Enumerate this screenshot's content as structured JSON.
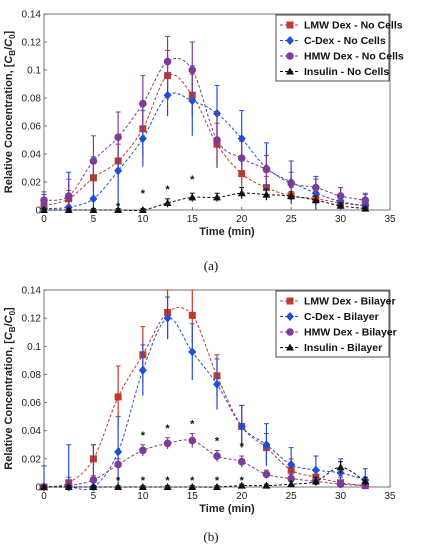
{
  "chart_data": [
    {
      "type": "line",
      "caption": "(a)",
      "xlabel": "Time (min)",
      "ylabel": "Relative Concentration, [C_B/C_0]",
      "ylabel_main": "Relative Concentration, [",
      "ylabel_c": "C",
      "ylabel_b": "B",
      "ylabel_slash": "/",
      "ylabel_c2": "C",
      "ylabel_0": "0",
      "ylabel_end": "]",
      "xlim": [
        0,
        35
      ],
      "ylim": [
        0,
        0.14
      ],
      "xticks": [
        "0",
        "5",
        "10",
        "15",
        "20",
        "25",
        "30",
        "35"
      ],
      "yticks": [
        "0",
        "0.02",
        "0.04",
        "0.06",
        "0.08",
        "0.1",
        "0.12",
        "0.14"
      ],
      "legend_position": "top-right",
      "x": [
        0,
        2.5,
        5,
        7.5,
        10,
        12.5,
        15,
        17.5,
        20,
        22.5,
        25,
        27.5,
        30,
        32.5
      ],
      "series": [
        {
          "name": "LMW Dex - No Cells",
          "color": "#c0392b",
          "marker": "square",
          "values": [
            0.003,
            0.008,
            0.023,
            0.035,
            0.058,
            0.096,
            0.082,
            0.047,
            0.026,
            0.016,
            0.01,
            0.008,
            0.005,
            0.003
          ],
          "errors": [
            0.004,
            0.006,
            0.01,
            0.012,
            0.02,
            0.018,
            0.015,
            0.015,
            0.012,
            0.008,
            0.006,
            0.005,
            0.004,
            0.003
          ]
        },
        {
          "name": "C-Dex - No Cells",
          "color": "#1f4fd6",
          "marker": "diamond",
          "values": [
            0.001,
            0.002,
            0.008,
            0.028,
            0.051,
            0.082,
            0.078,
            0.069,
            0.051,
            0.03,
            0.02,
            0.012,
            0.006,
            0.003
          ],
          "errors": [
            0.01,
            0.025,
            0.03,
            0.025,
            0.02,
            0.015,
            0.025,
            0.02,
            0.02,
            0.018,
            0.015,
            0.012,
            0.01,
            0.008
          ]
        },
        {
          "name": "HMW Dex - No Cells",
          "color": "#7d3c98",
          "marker": "circle",
          "values": [
            0.007,
            0.01,
            0.035,
            0.052,
            0.076,
            0.106,
            0.1,
            0.05,
            0.037,
            0.029,
            0.019,
            0.016,
            0.01,
            0.007
          ],
          "errors": [
            0.006,
            0.012,
            0.018,
            0.018,
            0.02,
            0.018,
            0.02,
            0.02,
            0.012,
            0.01,
            0.008,
            0.006,
            0.006,
            0.005
          ]
        },
        {
          "name": "Insulin - No Cells",
          "color": "#111111",
          "marker": "triangle",
          "values": [
            0.0,
            0.0,
            0.0,
            0.0,
            0.0,
            0.005,
            0.009,
            0.009,
            0.012,
            0.011,
            0.01,
            0.007,
            0.003,
            0.001
          ],
          "errors": [
            0.001,
            0.001,
            0.001,
            0.001,
            0.001,
            0.003,
            0.003,
            0.003,
            0.004,
            0.004,
            0.003,
            0.003,
            0.002,
            0.001
          ]
        }
      ],
      "annotations": [
        {
          "text": "*",
          "x": 7.5,
          "y": 0.003
        },
        {
          "text": "*",
          "x": 10,
          "y": 0.012
        },
        {
          "text": "*",
          "x": 12.5,
          "y": 0.015
        },
        {
          "text": "*",
          "x": 15,
          "y": 0.022
        }
      ]
    },
    {
      "type": "line",
      "caption": "(b)",
      "xlabel": "Time (min)",
      "ylabel": "Relative Concentration, [C_B/C_0]",
      "ylabel_main": "Relative Concentration, [",
      "ylabel_c": "C",
      "ylabel_b": "B",
      "ylabel_slash": "/",
      "ylabel_c2": "C",
      "ylabel_0": "0",
      "ylabel_end": "]",
      "xlim": [
        0,
        35
      ],
      "ylim": [
        0,
        0.14
      ],
      "xticks": [
        "0",
        "5",
        "10",
        "15",
        "20",
        "25",
        "30",
        "35"
      ],
      "yticks": [
        "0",
        "0.02",
        "0.04",
        "0.06",
        "0.08",
        "0.1",
        "0.12",
        "0.14"
      ],
      "legend_position": "top-right",
      "x": [
        0,
        2.5,
        5,
        7.5,
        10,
        12.5,
        15,
        17.5,
        20,
        22.5,
        25,
        27.5,
        30,
        32.5
      ],
      "series": [
        {
          "name": "LMW Dex - Bilayer",
          "color": "#c0392b",
          "marker": "square",
          "values": [
            0.0,
            0.003,
            0.02,
            0.064,
            0.094,
            0.124,
            0.122,
            0.079,
            0.043,
            0.028,
            0.012,
            0.007,
            0.003,
            0.001
          ],
          "errors": [
            0.002,
            0.004,
            0.01,
            0.022,
            0.02,
            0.018,
            0.02,
            0.015,
            0.015,
            0.01,
            0.008,
            0.005,
            0.004,
            0.002
          ]
        },
        {
          "name": "C-Dex - Bilayer",
          "color": "#1f4fd6",
          "marker": "diamond",
          "values": [
            0.0,
            0.0,
            0.0,
            0.025,
            0.083,
            0.12,
            0.096,
            0.073,
            0.043,
            0.03,
            0.016,
            0.012,
            0.01,
            0.005
          ],
          "errors": [
            0.015,
            0.03,
            0.03,
            0.025,
            0.018,
            0.015,
            0.02,
            0.018,
            0.015,
            0.015,
            0.012,
            0.01,
            0.01,
            0.008
          ]
        },
        {
          "name": "HMW Dex - Bilayer",
          "color": "#7d3c98",
          "marker": "circle",
          "values": [
            0.0,
            0.001,
            0.005,
            0.016,
            0.026,
            0.031,
            0.033,
            0.022,
            0.018,
            0.009,
            0.006,
            0.004,
            0.002,
            0.001
          ],
          "errors": [
            0.002,
            0.002,
            0.003,
            0.004,
            0.004,
            0.004,
            0.005,
            0.004,
            0.004,
            0.003,
            0.003,
            0.002,
            0.002,
            0.001
          ]
        },
        {
          "name": "Insulin - Bilayer",
          "color": "#111111",
          "marker": "triangle",
          "values": [
            0.0,
            0.0,
            0.0,
            0.0,
            0.0,
            0.0,
            0.0,
            0.0,
            0.001,
            0.001,
            0.002,
            0.004,
            0.014,
            0.004
          ],
          "errors": [
            0.001,
            0.001,
            0.001,
            0.001,
            0.001,
            0.001,
            0.001,
            0.001,
            0.001,
            0.001,
            0.002,
            0.003,
            0.004,
            0.003
          ]
        }
      ],
      "annotations": [
        {
          "text": "*",
          "x": 7.5,
          "y": 0.005
        },
        {
          "text": "*",
          "x": 10,
          "y": 0.037
        },
        {
          "text": "*",
          "x": 12.5,
          "y": 0.042
        },
        {
          "text": "*",
          "x": 15,
          "y": 0.045
        },
        {
          "text": "*",
          "x": 17.5,
          "y": 0.033
        },
        {
          "text": "*",
          "x": 20,
          "y": 0.029
        },
        {
          "text": "*",
          "x": 10,
          "y": 0.005
        },
        {
          "text": "*",
          "x": 12.5,
          "y": 0.005
        },
        {
          "text": "*",
          "x": 15,
          "y": 0.005
        },
        {
          "text": "*",
          "x": 17.5,
          "y": 0.005
        },
        {
          "text": "*",
          "x": 20,
          "y": 0.005
        }
      ]
    }
  ]
}
